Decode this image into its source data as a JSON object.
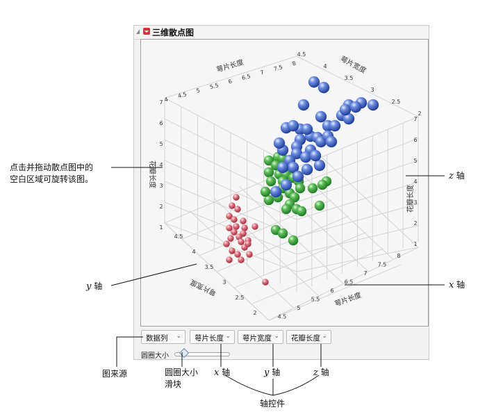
{
  "panel": {
    "title": "三维散点图"
  },
  "plot": {
    "axis_labels": {
      "sepal_length_top": "萼片长度",
      "sepal_width_top": "萼片宽度",
      "petal_length_left": "花瓣长度",
      "petal_length_right": "花瓣长度",
      "sepal_width_bottom": "萼片宽度",
      "sepal_length_bottom": "萼片长度"
    },
    "ticks": {
      "top_sepal_length": [
        "4",
        "4.5",
        "5",
        "5.5",
        "6",
        "6.5",
        "7",
        "7.5",
        "8"
      ],
      "top_sepal_width": [
        "4.5",
        "4",
        "3.5",
        "3",
        "2.5",
        "2"
      ],
      "left_petal_length": [
        "7",
        "6",
        "5",
        "4",
        "3",
        "2",
        "1"
      ],
      "right_petal_length": [
        "7",
        "6",
        "5",
        "4",
        "3",
        "2",
        "1"
      ],
      "bottom_sepal_width": [
        "4.5",
        "4",
        "3.5",
        "3",
        "2.5",
        "2"
      ],
      "bottom_sepal_length": [
        "8",
        "7.5",
        "7",
        "6.5",
        "6",
        "5.5",
        "5",
        "4.5"
      ]
    },
    "series_colors": {
      "setosa": "#e06b78",
      "versicolor": "#4aa84a",
      "virginica": "#4a6fd0"
    }
  },
  "controls": {
    "source": "数据列",
    "x": "萼片长度",
    "y": "萼片宽度",
    "z": "花瓣长度",
    "chevron_icon": "chevron-down-icon",
    "slider_label": "圆圈大小",
    "circle_size": 0.12
  },
  "annotations": {
    "drag_line1": "点击并拖动散点图中的",
    "drag_line2": "空白区域可旋转该图。",
    "z_axis_right_var": "z",
    "z_axis_right_text": "轴",
    "y_axis_left_var": "y",
    "y_axis_left_text": "轴",
    "x_axis_right_var": "x",
    "x_axis_right_text": "轴",
    "source_label": "图来源",
    "slider_line1": "圆圈大小",
    "slider_line2": "滑块",
    "x_ctrl_var": "x",
    "x_ctrl_text": "轴",
    "y_ctrl_var": "y",
    "y_ctrl_text": "轴",
    "z_ctrl_var": "z",
    "z_ctrl_text": "轴",
    "axis_controls": "轴控件"
  }
}
